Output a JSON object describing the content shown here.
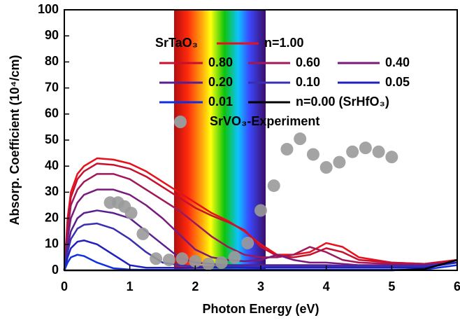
{
  "chart_data": {
    "type": "line",
    "x_label": "Photon Energy (eV)",
    "y_label": "Absorp. Coefficient (10⁴/cm)",
    "legend_title": "SrTaO₃",
    "xlim": [
      0,
      6
    ],
    "xticks": [
      0,
      1,
      2,
      3,
      4,
      5,
      6
    ],
    "ylim": [
      0,
      100
    ],
    "yticks": [
      0,
      10,
      20,
      30,
      40,
      50,
      60,
      70,
      80,
      90,
      100
    ],
    "x": [
      0,
      0.05,
      0.1,
      0.2,
      0.3,
      0.5,
      0.75,
      1.0,
      1.25,
      1.5,
      1.75,
      2.0,
      2.25,
      2.5,
      2.75,
      3.0,
      3.25,
      3.5,
      3.75,
      4.0,
      4.25,
      4.5,
      5.0,
      5.5,
      6.0
    ],
    "series": [
      {
        "name": "n=1.00",
        "color": "#e8101a",
        "values": [
          0,
          20,
          30,
          37,
          40,
          43,
          42.5,
          41,
          38,
          34,
          30,
          26,
          22,
          19,
          15,
          10,
          6,
          6,
          7,
          10.5,
          9,
          5,
          3,
          2.5,
          4
        ]
      },
      {
        "name": "0.80",
        "color": "#c8102e",
        "values": [
          0,
          18,
          28,
          35,
          38,
          41,
          40.5,
          39,
          36,
          32,
          28,
          24,
          21,
          18.5,
          15.5,
          9,
          5.5,
          5,
          6,
          8.5,
          7,
          4,
          3,
          2.5,
          4
        ]
      },
      {
        "name": "0.60",
        "color": "#a0185a",
        "values": [
          0,
          15,
          25,
          31,
          34,
          37,
          37,
          35,
          31,
          27,
          23,
          18,
          13,
          9,
          6,
          5,
          5,
          6,
          9,
          7,
          4,
          3,
          2.5,
          2.3,
          3
        ]
      },
      {
        "name": "0.40",
        "color": "#7a1a7a",
        "values": [
          0,
          12,
          20,
          26,
          29,
          31,
          31,
          29,
          25,
          20,
          14,
          8,
          5,
          4,
          3.5,
          4,
          6,
          4,
          3,
          3,
          2.5,
          2,
          2,
          2,
          3
        ]
      },
      {
        "name": "0.20",
        "color": "#5a1f8f",
        "values": [
          0,
          9,
          15,
          20,
          22,
          23,
          22,
          20,
          15,
          10,
          5,
          3,
          2.5,
          2,
          2,
          2,
          2,
          2,
          2,
          2,
          1.8,
          1.8,
          1.7,
          1.8,
          3
        ]
      },
      {
        "name": "0.10",
        "color": "#3a2fb0",
        "values": [
          0,
          7,
          12,
          16,
          17.5,
          18,
          16,
          12,
          7,
          3,
          2,
          1.5,
          1.5,
          1.5,
          1.5,
          1.5,
          1.5,
          1.5,
          1.5,
          1.5,
          1.5,
          1.5,
          1.5,
          1.5,
          3
        ]
      },
      {
        "name": "0.05",
        "color": "#2020c0",
        "values": [
          0,
          5,
          8.5,
          11,
          11.5,
          10,
          6,
          2,
          1,
          1,
          1,
          1,
          1,
          1,
          1,
          1,
          1,
          1,
          1,
          1,
          1,
          1,
          1,
          1,
          3
        ]
      },
      {
        "name": "0.01",
        "color": "#1030e0",
        "values": [
          0,
          3,
          5,
          6,
          5.5,
          3,
          0.8,
          0.3,
          0.2,
          0.2,
          0.2,
          0.2,
          0.2,
          0.2,
          0.2,
          0.2,
          0.2,
          0.2,
          0.2,
          0.2,
          0.2,
          0.2,
          0.2,
          0.3,
          2
        ]
      },
      {
        "name": "n=0.00 (SrHfO₃)",
        "color": "#000000",
        "values": [
          0,
          0,
          0,
          0,
          0,
          0,
          0,
          0,
          0,
          0,
          0,
          0,
          0,
          0,
          0,
          0,
          0,
          0,
          0,
          0,
          0,
          0,
          0,
          0.5,
          4
        ]
      }
    ],
    "scatter": {
      "name": "SrVO₃-Experiment",
      "color": "#9a9a9a",
      "x": [
        0.7,
        0.82,
        0.92,
        1.02,
        1.2,
        1.4,
        1.6,
        1.8,
        2.0,
        2.2,
        2.4,
        2.6,
        2.8,
        3.0,
        3.2,
        3.4,
        3.6,
        3.8,
        4.0,
        4.2,
        4.4,
        4.6,
        4.8,
        5.0
      ],
      "values": [
        26,
        26,
        24.5,
        22,
        14,
        4.5,
        4,
        4.5,
        3.5,
        2.5,
        3,
        5,
        10.5,
        23,
        32.5,
        46.5,
        50.5,
        44.5,
        39.5,
        41.5,
        45.5,
        47,
        45.5,
        43.5
      ]
    }
  }
}
